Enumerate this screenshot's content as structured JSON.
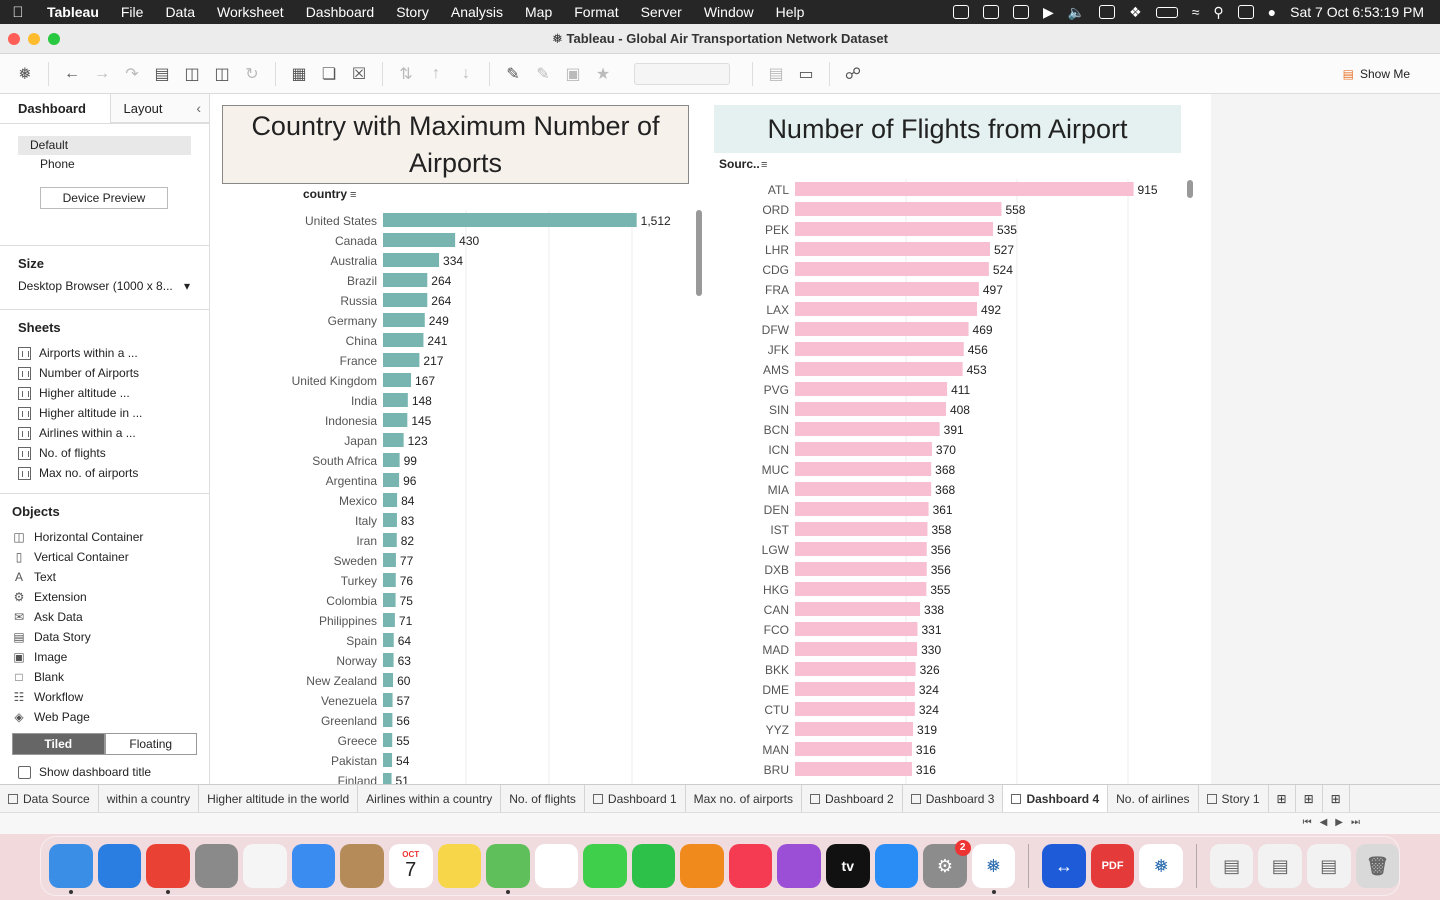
{
  "menubar": {
    "app": "Tableau",
    "items": [
      "File",
      "Data",
      "Worksheet",
      "Dashboard",
      "Story",
      "Analysis",
      "Map",
      "Format",
      "Server",
      "Window",
      "Help"
    ],
    "clock": "Sat 7 Oct  6:53:19 PM"
  },
  "window": {
    "title": "Tableau - Global Air Transportation Network Dataset"
  },
  "toolbar": {
    "show_me": "Show Me"
  },
  "left_panel": {
    "tab_dashboard": "Dashboard",
    "tab_layout": "Layout",
    "devices": [
      "Default",
      "Phone"
    ],
    "device_preview": "Device Preview",
    "size_title": "Size",
    "size_value": "Desktop Browser (1000 x 8...",
    "sheets_title": "Sheets",
    "sheets": [
      "Airports within a ...",
      "Number of Airports",
      "Higher altitude ...",
      "Higher altitude in ...",
      "Airlines within a ...",
      "No. of flights",
      "Max no. of airports"
    ],
    "objects_title": "Objects",
    "objects": [
      {
        "label": "Horizontal Container",
        "icon": "horizontal-container-icon"
      },
      {
        "label": "Vertical Container",
        "icon": "vertical-container-icon"
      },
      {
        "label": "Text",
        "icon": "text-icon"
      },
      {
        "label": "Extension",
        "icon": "extension-icon"
      },
      {
        "label": "Ask Data",
        "icon": "ask-data-icon"
      },
      {
        "label": "Data Story",
        "icon": "data-story-icon"
      },
      {
        "label": "Image",
        "icon": "image-icon"
      },
      {
        "label": "Blank",
        "icon": "blank-icon"
      },
      {
        "label": "Workflow",
        "icon": "workflow-icon"
      },
      {
        "label": "Web Page",
        "icon": "web-page-icon"
      }
    ],
    "tiled": "Tiled",
    "floating": "Floating",
    "show_title": "Show dashboard title"
  },
  "chart_data": [
    {
      "type": "bar",
      "orientation": "horizontal",
      "title": "Country with Maximum Number of Airports",
      "ylabel": "country",
      "color": "#78b5b0",
      "categories": [
        "United States",
        "Canada",
        "Australia",
        "Brazil",
        "Russia",
        "Germany",
        "China",
        "France",
        "United Kingdom",
        "India",
        "Indonesia",
        "Japan",
        "South Africa",
        "Argentina",
        "Mexico",
        "Italy",
        "Iran",
        "Sweden",
        "Turkey",
        "Colombia",
        "Philippines",
        "Spain",
        "Norway",
        "New Zealand",
        "Venezuela",
        "Greenland",
        "Greece",
        "Pakistan",
        "Finland"
      ],
      "values": [
        1512,
        430,
        334,
        264,
        264,
        249,
        241,
        217,
        167,
        148,
        145,
        123,
        99,
        96,
        84,
        83,
        82,
        77,
        76,
        75,
        71,
        64,
        63,
        60,
        57,
        56,
        55,
        54,
        51
      ],
      "labels": [
        "1,512",
        "430",
        "334",
        "264",
        "264",
        "249",
        "241",
        "217",
        "167",
        "148",
        "145",
        "123",
        "99",
        "96",
        "84",
        "83",
        "82",
        "77",
        "76",
        "75",
        "71",
        "64",
        "63",
        "60",
        "57",
        "56",
        "55",
        "54",
        "51"
      ],
      "xlim": [
        0,
        1800
      ]
    },
    {
      "type": "bar",
      "orientation": "horizontal",
      "title": "Number of Flights from Airport",
      "ylabel": "Sourc..",
      "color": "#f7bfd1",
      "categories": [
        "ATL",
        "ORD",
        "PEK",
        "LHR",
        "CDG",
        "FRA",
        "LAX",
        "DFW",
        "JFK",
        "AMS",
        "PVG",
        "SIN",
        "BCN",
        "ICN",
        "MUC",
        "MIA",
        "DEN",
        "IST",
        "LGW",
        "DXB",
        "HKG",
        "CAN",
        "FCO",
        "MAD",
        "BKK",
        "DME",
        "CTU",
        "YYZ",
        "MAN",
        "BRU"
      ],
      "values": [
        915,
        558,
        535,
        527,
        524,
        497,
        492,
        469,
        456,
        453,
        411,
        408,
        391,
        370,
        368,
        368,
        361,
        358,
        356,
        356,
        355,
        338,
        331,
        330,
        326,
        324,
        324,
        319,
        316,
        316
      ],
      "xlim": [
        0,
        1000
      ]
    }
  ],
  "tabs": [
    {
      "label": "Data Source",
      "icon": true
    },
    {
      "label": "within a country",
      "icon": false
    },
    {
      "label": "Higher altitude in the world",
      "icon": false
    },
    {
      "label": "Airlines within a country",
      "icon": false
    },
    {
      "label": "No. of flights",
      "icon": false
    },
    {
      "label": "Dashboard 1",
      "icon": true
    },
    {
      "label": "Max no. of airports",
      "icon": false
    },
    {
      "label": "Dashboard 2",
      "icon": true
    },
    {
      "label": "Dashboard 3",
      "icon": true
    },
    {
      "label": "Dashboard 4",
      "icon": true,
      "active": true
    },
    {
      "label": "No. of airlines",
      "icon": false
    },
    {
      "label": "Story 1",
      "icon": true
    }
  ],
  "dock": {
    "calendar_month": "OCT",
    "calendar_day": "7",
    "tv_label": "tv",
    "settings_badge": "2",
    "pdf_label": "PDF",
    "apps": [
      {
        "name": "finder",
        "color": "#3a8ee6"
      },
      {
        "name": "safari",
        "color": "#2a7de1"
      },
      {
        "name": "chrome",
        "color": "#e94235"
      },
      {
        "name": "launchpad",
        "color": "#8a8a8a"
      },
      {
        "name": "reminders",
        "color": "#f5f5f5"
      },
      {
        "name": "mail",
        "color": "#3b8cf0"
      },
      {
        "name": "contacts",
        "color": "#b58b5a"
      },
      {
        "name": "calendar",
        "color": "#ffffff"
      },
      {
        "name": "notes",
        "color": "#f7d64a"
      },
      {
        "name": "maps",
        "color": "#5fbf5a"
      },
      {
        "name": "photos",
        "color": "#ffffff"
      },
      {
        "name": "messages",
        "color": "#3fcf4b"
      },
      {
        "name": "facetime",
        "color": "#2ec14a"
      },
      {
        "name": "books",
        "color": "#f08a1c"
      },
      {
        "name": "music",
        "color": "#f43b52"
      },
      {
        "name": "podcasts",
        "color": "#9b4fd6"
      },
      {
        "name": "tv",
        "color": "#111111"
      },
      {
        "name": "app-store",
        "color": "#2a8cf5"
      },
      {
        "name": "system-settings",
        "color": "#8c8c8c"
      },
      {
        "name": "tableau",
        "color": "#ffffff"
      }
    ]
  }
}
